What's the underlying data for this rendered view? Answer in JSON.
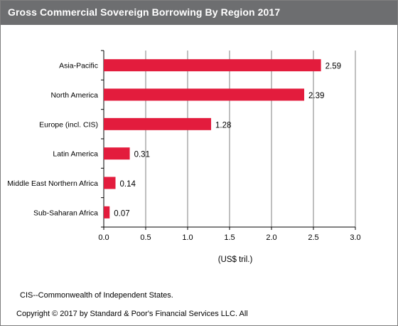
{
  "chart_data": {
    "type": "bar",
    "orientation": "horizontal",
    "title": "Gross  Commercial Sovereign Borrowing By Region 2017",
    "categories": [
      "Asia-Pacific",
      "North America",
      "Europe (incl. CIS)",
      "Latin America",
      "Middle East Northern Africa",
      "Sub-Saharan Africa"
    ],
    "values": [
      2.59,
      2.39,
      1.28,
      0.31,
      0.14,
      0.07
    ],
    "value_labels": [
      "2.59",
      "2.39",
      "1.28",
      "0.31",
      "0.14",
      "0.07"
    ],
    "xlabel": "(US$ tril.)",
    "ylabel": "",
    "xlim": [
      0,
      3.0
    ],
    "xticks": [
      "0.0",
      "0.5",
      "1.0",
      "1.5",
      "2.0",
      "2.5",
      "3.0"
    ],
    "grid": "vertical",
    "legend": "none",
    "bar_color": "#e31c3d"
  },
  "footer": {
    "note": "CIS--Commonwealth of Independent States.",
    "copyright": "Copyright © 2017 by Standard & Poor's Financial Services LLC. All"
  },
  "colors": {
    "header_bg": "#6d6e70",
    "grid": "#7f7f7f"
  }
}
